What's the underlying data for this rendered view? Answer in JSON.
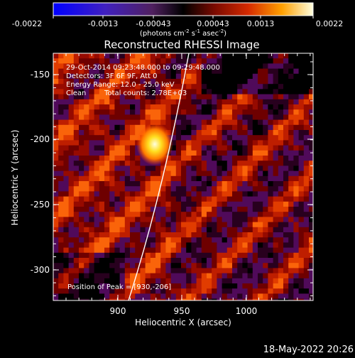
{
  "colorbar": {
    "tick_labels": [
      "-0.0022",
      "-0.0013",
      "-0.00043",
      "0.00043",
      "0.0013",
      "0.0022"
    ],
    "unit_label": "(photons cm",
    "unit_sup1": "-2",
    "unit_mid": " s",
    "unit_sup2": "-1",
    "unit_mid2": " asec",
    "unit_sup3": "-2",
    "unit_end": ")"
  },
  "plot": {
    "title": "Reconstructed RHESSI Image",
    "xlabel": "Heliocentric X (arcsec)",
    "ylabel": "Heliocentric Y (arcsec)",
    "xticks": [
      "900",
      "950",
      "1000"
    ],
    "yticks": [
      "-150",
      "-200",
      "-250",
      "-300"
    ],
    "info": {
      "line1": "29-Oct-2014 09:23:48.000 to 09:29:48.000",
      "line2": "Detectors: 3F 6F 9F, Att 0",
      "line3": "Energy Range: 12.0 - 25.0 keV",
      "line4_a": "Clean",
      "line4_b": "Total counts: 2.78E+03"
    },
    "peak_label": "Position of Peak = [930,-206]"
  },
  "footer": {
    "date": "18-May-2022 20:26"
  },
  "colors": {
    "background": "#000000",
    "text": "#ffffff",
    "limb": "#ffffff"
  }
}
